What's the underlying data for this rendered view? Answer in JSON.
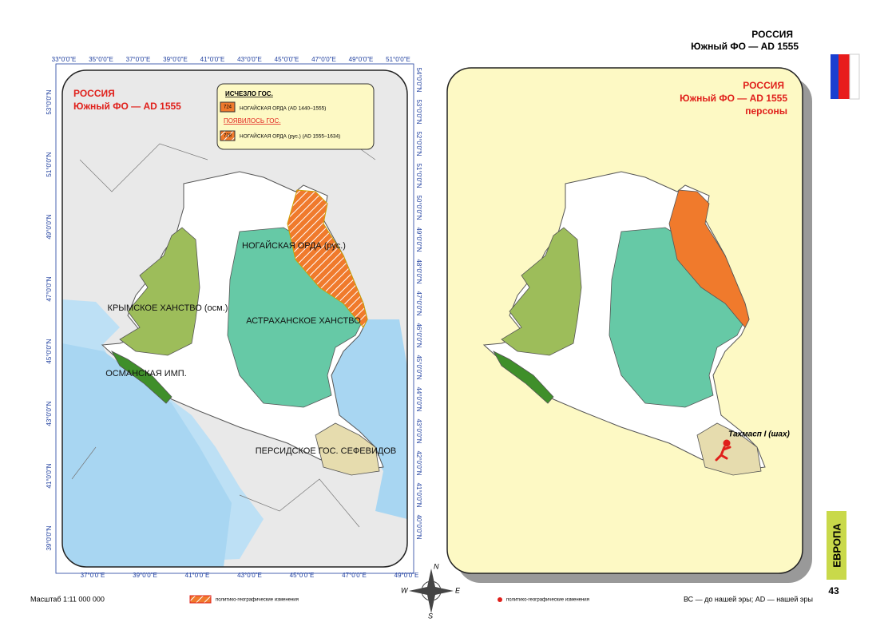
{
  "header": {
    "country": "РОССИЯ",
    "subtitle": "Южный ФО — AD 1555"
  },
  "left_map": {
    "title": "РОССИЯ",
    "subtitle": "Южный ФО — AD 1555",
    "legend": {
      "disappeared": "ИСЧЕЗЛО ГОС.",
      "item1_code": "724",
      "item1": "НОГАЙСКАЯ ОРДА (AD 1440–1555)",
      "appeared": "ПОЯВИЛОСЬ ГОС.",
      "item2_code": "728",
      "item2": "НОГАЙСКАЯ ОРДА (рус.) (AD 1555–1634)"
    },
    "labels": [
      "НОГАЙСКАЯ ОРДА (рус.)",
      "КРЫМСКОЕ ХАНСТВО (осм.)",
      "АСТРАХАНСКОЕ ХАНСТВО",
      "ОСМАНСКАЯ ИМП.",
      "ПЕРСИДСКОЕ ГОС. СЕФЕВИДОВ"
    ],
    "top_lon": [
      "33°0'0\"E",
      "35°0'0\"E",
      "37°0'0\"E",
      "39°0'0\"E",
      "41°0'0\"E",
      "43°0'0\"E",
      "45°0'0\"E",
      "47°0'0\"E",
      "49°0'0\"E",
      "51°0'0\"E"
    ],
    "bottom_lon": [
      "37°0'0\"E",
      "39°0'0\"E",
      "41°0'0\"E",
      "43°0'0\"E",
      "45°0'0\"E",
      "47°0'0\"E",
      "49°0'0\"E"
    ],
    "left_lat": [
      "53°0'0\"N",
      "51°0'0\"N",
      "49°0'0\"N",
      "47°0'0\"N",
      "45°0'0\"N",
      "43°0'0\"N",
      "41°0'0\"N",
      "39°0'0\"N"
    ],
    "right_lat": [
      "54°0'0\"N",
      "53°0'0\"N",
      "52°0'0\"N",
      "51°0'0\"N",
      "50°0'0\"N",
      "49°0'0\"N",
      "48°0'0\"N",
      "47°0'0\"N",
      "46°0'0\"N",
      "45°0'0\"N",
      "44°0'0\"N",
      "43°0'0\"N",
      "42°0'0\"N",
      "41°0'0\"N",
      "40°0'0\"N"
    ]
  },
  "right_map": {
    "title": "РОССИЯ",
    "subtitle": "Южный ФО — AD 1555",
    "note": "персоны",
    "person": "Тахмасп I (шах)"
  },
  "compass": [
    "N",
    "W",
    "E",
    "S"
  ],
  "side_tab": "ЕВРОПА",
  "page_number": "43",
  "footer": {
    "scale": "Масштаб 1:11 000 000",
    "legend_changes": "политико-географические изменения",
    "legend_persons": "политико-географические изменения",
    "era_note": "ВС — до нашей эры; AD — нашей эры"
  }
}
